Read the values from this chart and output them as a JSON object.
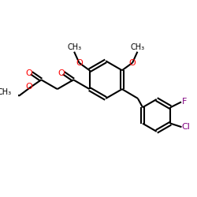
{
  "bg_color": "#ffffff",
  "bond_color": "#000000",
  "O_color": "#ff0000",
  "F_color": "#800080",
  "Cl_color": "#800080",
  "line_width": 1.5,
  "font_size": 7,
  "fig_size": [
    2.5,
    2.5
  ],
  "dpi": 100,
  "xlim": [
    0,
    10
  ],
  "ylim": [
    0,
    10
  ]
}
